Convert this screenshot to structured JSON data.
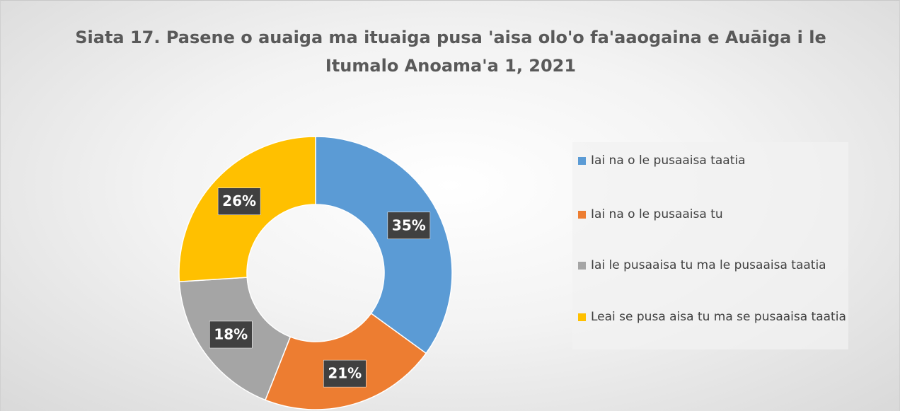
{
  "chart_data": {
    "type": "donut",
    "title": "Siata 17. Pasene o auaiga ma ituaiga pusa 'aisa olo'o fa'aaogaina e Auāiga i le Itumalo Anoama'a 1, 2021",
    "categories": [
      "Iai na o le pusaaisa taatia",
      "Iai na o le pusaaisa tu",
      "Iai le pusaaisa tu ma le pusaaisa taatia",
      "Leai se pusa aisa tu ma se pusaaisa taatia"
    ],
    "values": [
      35,
      21,
      18,
      26
    ],
    "value_labels": [
      "35%",
      "21%",
      "18%",
      "26%"
    ],
    "colors": [
      "#5b9bd5",
      "#ed7d31",
      "#a5a5a5",
      "#ffc000"
    ],
    "legend": "right"
  }
}
